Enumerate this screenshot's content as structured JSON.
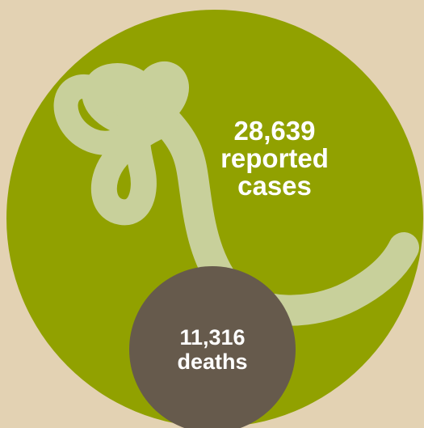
{
  "colors": {
    "background": "#e3d2b3",
    "cases_circle": "#91a100",
    "deaths_circle": "#665a4c",
    "virus": "#c8d09b",
    "text": "#ffffff"
  },
  "icons": {
    "virus": "ebola-virus-icon"
  },
  "cases": {
    "number": "28,639",
    "line1": "reported",
    "line2": "cases"
  },
  "deaths": {
    "number": "11,316",
    "line1": "deaths"
  }
}
